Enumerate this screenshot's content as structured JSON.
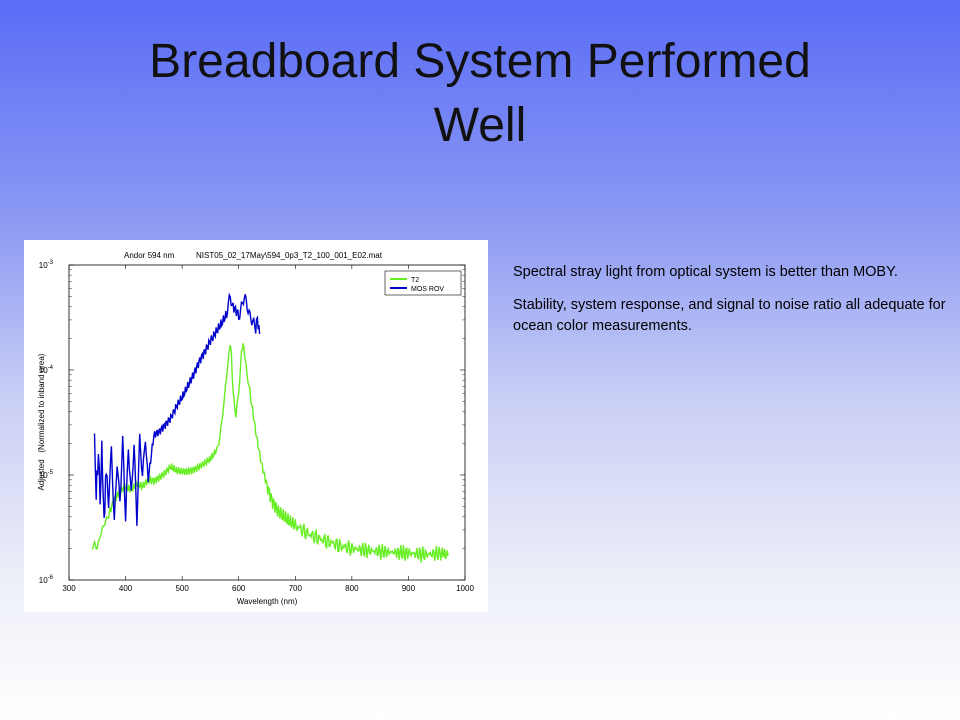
{
  "slide": {
    "title_line1": "Breadboard System Performed",
    "title_line2": "Well"
  },
  "notes": [
    "Spectral stray light from optical system is better than MOBY.",
    "Stability, system response, and signal to noise ratio all adequate for ocean color measurements."
  ],
  "chart_data": {
    "type": "line",
    "title_left": "Andor 594 nm",
    "title_right": "NIST05_02_17May\\594_0p3_T2_100_001_E02.mat",
    "xlabel": "Wavelength (nm)",
    "ylabel": "Adjusted   (Normalized to inband area)",
    "xlim": [
      300,
      1000
    ],
    "ylim": [
      1e-06,
      0.001
    ],
    "yscale": "log",
    "x_ticks": [
      "300",
      "400",
      "500",
      "600",
      "700",
      "800",
      "900",
      "1000"
    ],
    "y_ticks": [
      {
        "value": 1e-06,
        "base": "10",
        "exp": "-6"
      },
      {
        "value": 1e-05,
        "base": "10",
        "exp": "-5"
      },
      {
        "value": 0.0001,
        "base": "10",
        "exp": "-4"
      },
      {
        "value": 0.001,
        "base": "10",
        "exp": "-3"
      }
    ],
    "grid": false,
    "legend_position": "top-right",
    "series": [
      {
        "name": "T2",
        "color": "#66ee22",
        "points": [
          [
            340,
            2e-06
          ],
          [
            345,
            2.3e-06
          ],
          [
            350,
            2.1e-06
          ],
          [
            355,
            2.6e-06
          ],
          [
            360,
            3e-06
          ],
          [
            365,
            3.6e-06
          ],
          [
            370,
            4.2e-06
          ],
          [
            380,
            5.8e-06
          ],
          [
            390,
            7e-06
          ],
          [
            400,
            7.8e-06
          ],
          [
            410,
            7.2e-06
          ],
          [
            420,
            8.2e-06
          ],
          [
            430,
            7.8e-06
          ],
          [
            440,
            9e-06
          ],
          [
            450,
            8.8e-06
          ],
          [
            460,
            9.5e-06
          ],
          [
            470,
            1.05e-05
          ],
          [
            480,
            1.2e-05
          ],
          [
            490,
            1.1e-05
          ],
          [
            500,
            1.08e-05
          ],
          [
            510,
            1.08e-05
          ],
          [
            520,
            1.12e-05
          ],
          [
            530,
            1.2e-05
          ],
          [
            540,
            1.3e-05
          ],
          [
            550,
            1.42e-05
          ],
          [
            560,
            1.7e-05
          ],
          [
            565,
            2e-05
          ],
          [
            570,
            3e-05
          ],
          [
            575,
            5.5e-05
          ],
          [
            580,
            0.00011
          ],
          [
            585,
            0.00018
          ],
          [
            587,
            0.00015
          ],
          [
            590,
            6e-05
          ],
          [
            595,
            3.5e-05
          ],
          [
            600,
            6e-05
          ],
          [
            605,
            0.00015
          ],
          [
            608,
            0.00018
          ],
          [
            612,
            0.00012
          ],
          [
            620,
            6e-05
          ],
          [
            630,
            2.6e-05
          ],
          [
            640,
            1.3e-05
          ],
          [
            650,
            8e-06
          ],
          [
            660,
            5.5e-06
          ],
          [
            670,
            4.5e-06
          ],
          [
            680,
            4e-06
          ],
          [
            690,
            3.6e-06
          ],
          [
            700,
            3.3e-06
          ],
          [
            720,
            2.8e-06
          ],
          [
            740,
            2.5e-06
          ],
          [
            760,
            2.3e-06
          ],
          [
            780,
            2.1e-06
          ],
          [
            800,
            2e-06
          ],
          [
            830,
            1.9e-06
          ],
          [
            860,
            1.85e-06
          ],
          [
            900,
            1.8e-06
          ],
          [
            930,
            1.75e-06
          ],
          [
            960,
            1.8e-06
          ],
          [
            970,
            1.7e-06
          ]
        ]
      },
      {
        "name": "MOS ROV",
        "color": "#0000cc",
        "points": [
          [
            345,
            2e-05
          ],
          [
            348,
            7e-06
          ],
          [
            352,
            1.5e-05
          ],
          [
            355,
            6e-06
          ],
          [
            358,
            1.8e-05
          ],
          [
            362,
            3.5e-06
          ],
          [
            366,
            1.2e-05
          ],
          [
            370,
            5e-06
          ],
          [
            375,
            1.6e-05
          ],
          [
            380,
            3.5e-06
          ],
          [
            385,
            1.5e-05
          ],
          [
            390,
            6e-06
          ],
          [
            395,
            2e-05
          ],
          [
            400,
            3.5e-06
          ],
          [
            405,
            1.8e-05
          ],
          [
            410,
            7e-06
          ],
          [
            415,
            2.2e-05
          ],
          [
            420,
            3.5e-06
          ],
          [
            425,
            2e-05
          ],
          [
            430,
            9e-06
          ],
          [
            435,
            2.5e-05
          ],
          [
            440,
            9e-06
          ],
          [
            450,
            2.4e-05
          ],
          [
            460,
            2.6e-05
          ],
          [
            470,
            3e-05
          ],
          [
            480,
            3.5e-05
          ],
          [
            490,
            4.5e-05
          ],
          [
            500,
            5.5e-05
          ],
          [
            510,
            7e-05
          ],
          [
            520,
            9e-05
          ],
          [
            530,
            0.00012
          ],
          [
            540,
            0.00015
          ],
          [
            550,
            0.00019
          ],
          [
            560,
            0.00023
          ],
          [
            570,
            0.00028
          ],
          [
            580,
            0.00035
          ],
          [
            585,
            0.00045
          ],
          [
            590,
            0.0004
          ],
          [
            600,
            0.00034
          ],
          [
            605,
            0.00037
          ],
          [
            610,
            0.00045
          ],
          [
            615,
            0.0004
          ],
          [
            620,
            0.00036
          ],
          [
            625,
            0.00032
          ],
          [
            630,
            0.00024
          ],
          [
            633,
            0.0003
          ],
          [
            637,
            0.00022
          ]
        ]
      }
    ]
  }
}
